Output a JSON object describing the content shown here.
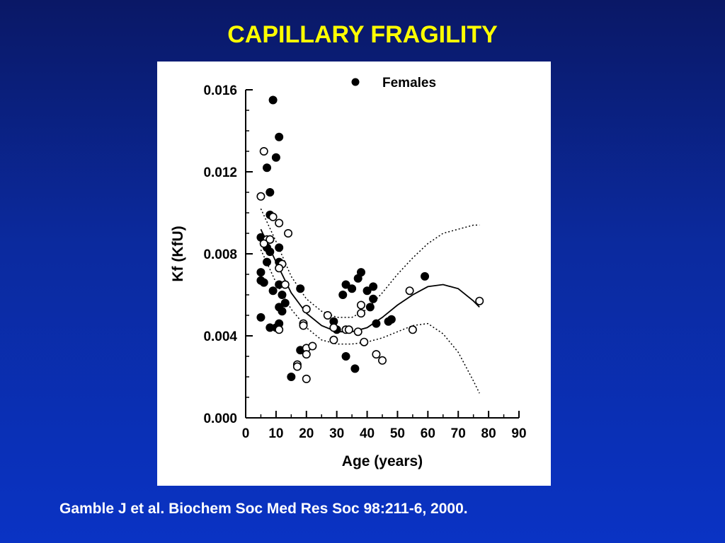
{
  "slide": {
    "title": "CAPILLARY FRAGILITY",
    "citation": "Gamble J et al. Biochem Soc Med Res Soc 98:211-6, 2000."
  },
  "chart_data": {
    "type": "scatter",
    "title": "",
    "xlabel": "Age (years)",
    "ylabel": "Kf (KfU)",
    "xlim": [
      0,
      90
    ],
    "ylim": [
      0,
      0.016
    ],
    "x_ticks": [
      "0",
      "10",
      "20",
      "30",
      "40",
      "50",
      "60",
      "70",
      "80",
      "90"
    ],
    "y_ticks": [
      "0.000",
      "0.004",
      "0.008",
      "0.012",
      "0.016"
    ],
    "grid": false,
    "legend": {
      "position": "top-right",
      "entries": [
        "Females"
      ]
    },
    "series": [
      {
        "name": "Females",
        "marker": "filled-circle",
        "points": [
          [
            9,
            0.0155
          ],
          [
            11,
            0.0137
          ],
          [
            10,
            0.0127
          ],
          [
            7,
            0.0122
          ],
          [
            8,
            0.011
          ],
          [
            8,
            0.0099
          ],
          [
            5,
            0.0088
          ],
          [
            8,
            0.0087
          ],
          [
            7,
            0.0083
          ],
          [
            8,
            0.0081
          ],
          [
            11,
            0.0083
          ],
          [
            7,
            0.0076
          ],
          [
            11,
            0.0076
          ],
          [
            5,
            0.0071
          ],
          [
            5,
            0.0067
          ],
          [
            6,
            0.0066
          ],
          [
            11,
            0.0065
          ],
          [
            9,
            0.0062
          ],
          [
            12,
            0.006
          ],
          [
            11,
            0.0054
          ],
          [
            13,
            0.0056
          ],
          [
            12,
            0.0052
          ],
          [
            5,
            0.0049
          ],
          [
            8,
            0.0044
          ],
          [
            10,
            0.0044
          ],
          [
            11,
            0.0046
          ],
          [
            18,
            0.0063
          ],
          [
            18,
            0.0033
          ],
          [
            15,
            0.002
          ],
          [
            33,
            0.0065
          ],
          [
            35,
            0.0063
          ],
          [
            37,
            0.0068
          ],
          [
            38,
            0.0071
          ],
          [
            32,
            0.006
          ],
          [
            40,
            0.0062
          ],
          [
            42,
            0.0064
          ],
          [
            42,
            0.0058
          ],
          [
            41,
            0.0054
          ],
          [
            29,
            0.0047
          ],
          [
            30,
            0.0043
          ],
          [
            43,
            0.0046
          ],
          [
            48,
            0.0048
          ],
          [
            47,
            0.0047
          ],
          [
            59,
            0.0069
          ],
          [
            33,
            0.003
          ],
          [
            36,
            0.0024
          ]
        ]
      },
      {
        "name": "",
        "marker": "open-circle",
        "points": [
          [
            6,
            0.013
          ],
          [
            5,
            0.0108
          ],
          [
            9,
            0.0098
          ],
          [
            11,
            0.0095
          ],
          [
            14,
            0.009
          ],
          [
            7,
            0.0087
          ],
          [
            6,
            0.0085
          ],
          [
            8,
            0.0087
          ],
          [
            12,
            0.0075
          ],
          [
            11,
            0.0073
          ],
          [
            13,
            0.0065
          ],
          [
            11,
            0.0043
          ],
          [
            20,
            0.0053
          ],
          [
            19,
            0.0046
          ],
          [
            19,
            0.0045
          ],
          [
            20,
            0.0034
          ],
          [
            22,
            0.0035
          ],
          [
            20,
            0.0031
          ],
          [
            17,
            0.0026
          ],
          [
            17,
            0.0025
          ],
          [
            20,
            0.0019
          ],
          [
            27,
            0.005
          ],
          [
            29,
            0.0044
          ],
          [
            29,
            0.0038
          ],
          [
            33,
            0.0043
          ],
          [
            34,
            0.0043
          ],
          [
            37,
            0.0042
          ],
          [
            38,
            0.0055
          ],
          [
            38,
            0.0051
          ],
          [
            39,
            0.0037
          ],
          [
            43,
            0.0031
          ],
          [
            45,
            0.0028
          ],
          [
            54,
            0.0062
          ],
          [
            55,
            0.0043
          ],
          [
            77,
            0.0057
          ]
        ]
      }
    ],
    "curves": {
      "fit": [
        [
          5,
          0.0092
        ],
        [
          10,
          0.0076
        ],
        [
          15,
          0.0061
        ],
        [
          20,
          0.0051
        ],
        [
          25,
          0.0045
        ],
        [
          30,
          0.0042
        ],
        [
          35,
          0.0042
        ],
        [
          40,
          0.0044
        ],
        [
          45,
          0.0049
        ],
        [
          50,
          0.0055
        ],
        [
          55,
          0.006
        ],
        [
          60,
          0.0064
        ],
        [
          65,
          0.0065
        ],
        [
          70,
          0.0063
        ],
        [
          75,
          0.0057
        ],
        [
          77,
          0.0054
        ]
      ],
      "upper_band": [
        [
          5,
          0.0102
        ],
        [
          10,
          0.0086
        ],
        [
          15,
          0.0069
        ],
        [
          20,
          0.0058
        ],
        [
          25,
          0.0052
        ],
        [
          30,
          0.0049
        ],
        [
          35,
          0.0049
        ],
        [
          40,
          0.0053
        ],
        [
          45,
          0.0061
        ],
        [
          50,
          0.007
        ],
        [
          55,
          0.0078
        ],
        [
          60,
          0.0085
        ],
        [
          65,
          0.009
        ],
        [
          70,
          0.0092
        ],
        [
          75,
          0.0094
        ],
        [
          77,
          0.0094
        ]
      ],
      "lower_band": [
        [
          5,
          0.0082
        ],
        [
          10,
          0.0066
        ],
        [
          15,
          0.0053
        ],
        [
          20,
          0.0044
        ],
        [
          25,
          0.0038
        ],
        [
          30,
          0.0036
        ],
        [
          35,
          0.0036
        ],
        [
          40,
          0.0037
        ],
        [
          45,
          0.0039
        ],
        [
          50,
          0.0042
        ],
        [
          55,
          0.0045
        ],
        [
          60,
          0.0046
        ],
        [
          65,
          0.0041
        ],
        [
          70,
          0.0032
        ],
        [
          75,
          0.0018
        ],
        [
          77,
          0.0012
        ]
      ]
    }
  }
}
